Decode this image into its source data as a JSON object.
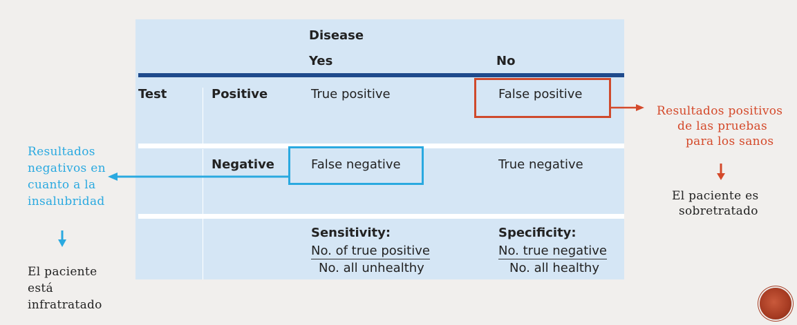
{
  "table": {
    "disease_header": "Disease",
    "yes_header": "Yes",
    "no_header": "No",
    "test_label": "Test",
    "positive_label": "Positive",
    "negative_label": "Negative",
    "true_positive": "True positive",
    "false_positive": "False positive",
    "false_negative": "False negative",
    "true_negative": "True negative",
    "sensitivity": {
      "title": "Sensitivity:",
      "numerator": "No. of true positive",
      "denominator": "No. all unhealthy"
    },
    "specificity": {
      "title": "Specificity:",
      "numerator": "No. true negative",
      "denominator": "No. all healthy"
    }
  },
  "annotations": {
    "false_positive_note": [
      "Resultados positivos",
      "de las pruebas",
      "para los sanos"
    ],
    "false_positive_consequence": [
      "El paciente es",
      "sobretratado"
    ],
    "false_negative_note": [
      "Resultados",
      "negativos en",
      "cuanto a la",
      "insalubridad"
    ],
    "false_negative_consequence": [
      "El paciente",
      "está",
      "infratratado"
    ]
  },
  "colors": {
    "panel": "#d5e6f5",
    "header_rule": "#1f4a8c",
    "false_positive_accent": "#d4492a",
    "false_negative_accent": "#2aa9e0"
  }
}
